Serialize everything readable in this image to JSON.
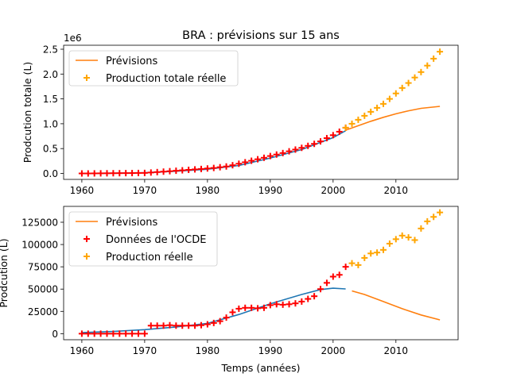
{
  "chart_data": [
    {
      "type": "line",
      "title": "BRA : prévisions sur 15 ans",
      "xlabel": "",
      "ylabel": "Prodcution totale (L)",
      "y_offset_label": "1e6",
      "xlim": [
        1957.1,
        2019.9
      ],
      "ylim": [
        -0.12,
        2.58
      ],
      "x_ticks": [
        1960,
        1970,
        1980,
        1990,
        2000,
        2010
      ],
      "y_ticks": [
        0.0,
        0.5,
        1.0,
        1.5,
        2.0,
        2.5
      ],
      "y_tick_labels": [
        "0.0",
        "0.5",
        "1.0",
        "1.5",
        "2.0",
        "2.5"
      ],
      "legend": {
        "position": "upper left",
        "entries": [
          {
            "label": "Prévisions",
            "kind": "line",
            "color": "#ff7f0e"
          },
          {
            "label": "Production totale réelle",
            "kind": "plus",
            "color": "#ffa500"
          }
        ]
      },
      "series": [
        {
          "kind": "line",
          "color": "#1f77b4",
          "x": [
            1960,
            1965,
            1970,
            1975,
            1980,
            1985,
            1990,
            1995,
            2000,
            2002
          ],
          "y": [
            0.0,
            0.005,
            0.015,
            0.045,
            0.085,
            0.16,
            0.31,
            0.48,
            0.72,
            0.86
          ]
        },
        {
          "kind": "line",
          "color": "#ff7f0e",
          "name": "Prévisions",
          "x": [
            2002,
            2004,
            2006,
            2008,
            2010,
            2012,
            2014,
            2017
          ],
          "y": [
            0.87,
            0.96,
            1.05,
            1.13,
            1.2,
            1.26,
            1.31,
            1.35
          ]
        },
        {
          "kind": "plus",
          "color": "#ff0000",
          "x": [
            1960,
            1961,
            1962,
            1963,
            1964,
            1965,
            1966,
            1967,
            1968,
            1969,
            1970,
            1971,
            1972,
            1973,
            1974,
            1975,
            1976,
            1977,
            1978,
            1979,
            1980,
            1981,
            1982,
            1983,
            1984,
            1985,
            1986,
            1987,
            1988,
            1989,
            1990,
            1991,
            1992,
            1993,
            1994,
            1995,
            1996,
            1997,
            1998,
            1999,
            2000,
            2001,
            2002
          ],
          "y": [
            0.0,
            0.0,
            0.001,
            0.002,
            0.003,
            0.004,
            0.005,
            0.006,
            0.007,
            0.009,
            0.01,
            0.018,
            0.027,
            0.036,
            0.045,
            0.054,
            0.063,
            0.072,
            0.081,
            0.09,
            0.1,
            0.11,
            0.125,
            0.14,
            0.165,
            0.195,
            0.225,
            0.255,
            0.285,
            0.315,
            0.35,
            0.38,
            0.41,
            0.445,
            0.48,
            0.515,
            0.555,
            0.595,
            0.645,
            0.71,
            0.77,
            0.84,
            0.92
          ]
        },
        {
          "kind": "plus",
          "color": "#ffa500",
          "name": "Production totale réelle",
          "x": [
            2002,
            2003,
            2004,
            2005,
            2006,
            2007,
            2008,
            2009,
            2010,
            2011,
            2012,
            2013,
            2014,
            2015,
            2016,
            2017
          ],
          "y": [
            0.92,
            1.0,
            1.08,
            1.16,
            1.24,
            1.32,
            1.4,
            1.5,
            1.61,
            1.72,
            1.82,
            1.93,
            2.04,
            2.17,
            2.31,
            2.45
          ]
        }
      ]
    },
    {
      "type": "line",
      "title": "",
      "xlabel": "Temps (années)",
      "ylabel": "Prodcution (L)",
      "xlim": [
        1957.1,
        2019.9
      ],
      "ylim": [
        -6800,
        142800
      ],
      "x_ticks": [
        1960,
        1970,
        1980,
        1990,
        2000,
        2010
      ],
      "y_ticks": [
        0,
        25000,
        50000,
        75000,
        100000,
        125000
      ],
      "y_tick_labels": [
        "0",
        "25000",
        "50000",
        "75000",
        "100000",
        "125000"
      ],
      "legend": {
        "position": "upper left",
        "entries": [
          {
            "label": "Prévisions",
            "kind": "line",
            "color": "#ff7f0e"
          },
          {
            "label": "Données de l'OCDE",
            "kind": "plus",
            "color": "#ff0000"
          },
          {
            "label": "Production réelle",
            "kind": "plus",
            "color": "#ffa500"
          }
        ]
      },
      "series": [
        {
          "kind": "line",
          "color": "#1f77b4",
          "x": [
            1960,
            1965,
            1970,
            1975,
            1980,
            1985,
            1990,
            1995,
            1998,
            2000,
            2002
          ],
          "y": [
            1200,
            2500,
            4500,
            7500,
            11500,
            21500,
            33500,
            44000,
            49500,
            51000,
            50200
          ]
        },
        {
          "kind": "line",
          "color": "#ff7f0e",
          "name": "Prévisions",
          "x": [
            2003,
            2005,
            2008,
            2011,
            2014,
            2017
          ],
          "y": [
            48000,
            44000,
            36000,
            28000,
            21000,
            15500
          ]
        },
        {
          "kind": "plus",
          "color": "#ff0000",
          "name": "Données de l'OCDE",
          "x": [
            1960,
            1961,
            1962,
            1963,
            1964,
            1965,
            1966,
            1967,
            1968,
            1969,
            1970,
            1971,
            1972,
            1973,
            1974,
            1975,
            1976,
            1977,
            1978,
            1979,
            1980,
            1981,
            1982,
            1983,
            1984,
            1985,
            1986,
            1987,
            1988,
            1989,
            1990,
            1991,
            1992,
            1993,
            1994,
            1995,
            1996,
            1997,
            1998,
            1999,
            2000,
            2001,
            2002
          ],
          "y": [
            0,
            0,
            0,
            0,
            0,
            0,
            0,
            0,
            0,
            0,
            0,
            9000,
            9000,
            9000,
            9500,
            9000,
            9000,
            9000,
            9000,
            9500,
            10500,
            12000,
            14000,
            18000,
            24000,
            28000,
            29000,
            29000,
            28500,
            29000,
            32000,
            33000,
            32500,
            33000,
            34000,
            36000,
            39000,
            42000,
            50000,
            57000,
            64000,
            66000,
            75000
          ]
        },
        {
          "kind": "plus",
          "color": "#ffa500",
          "name": "Production réelle",
          "x": [
            2003,
            2004,
            2005,
            2006,
            2007,
            2008,
            2009,
            2010,
            2011,
            2012,
            2013,
            2014,
            2015,
            2016,
            2017
          ],
          "y": [
            79000,
            77000,
            85000,
            90000,
            91000,
            94000,
            101000,
            106000,
            110000,
            108000,
            105000,
            118000,
            126000,
            131000,
            136000
          ]
        }
      ]
    }
  ]
}
